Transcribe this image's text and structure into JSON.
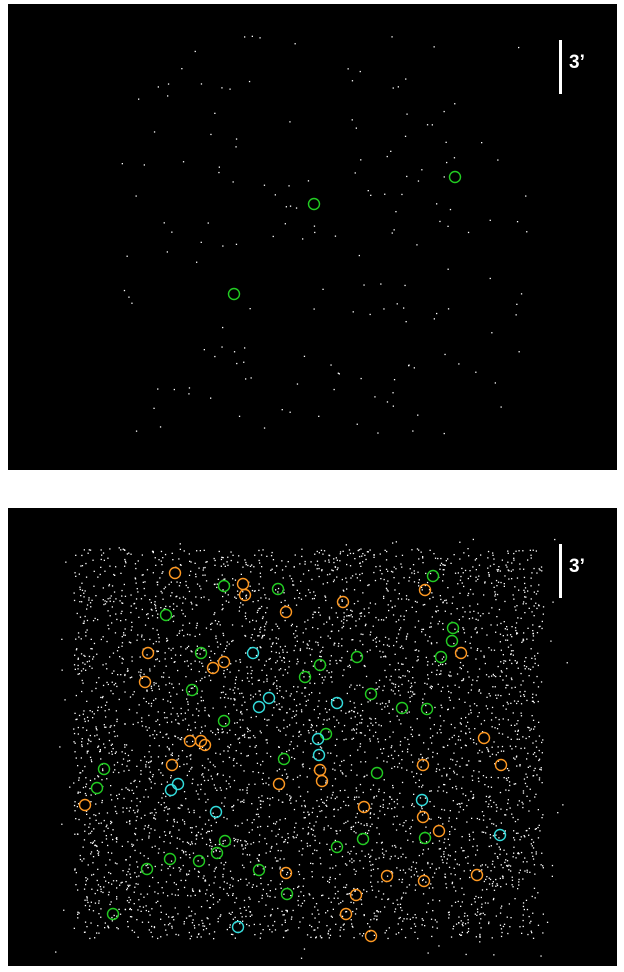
{
  "panels": {
    "top": {
      "scale_label": "3’",
      "circle_colors": {
        "green": "#22cc22",
        "orange": "#ff9922",
        "cyan": "#33dddd"
      }
    },
    "bottom": {
      "scale_label": "3’",
      "circle_colors": {
        "green": "#22cc22",
        "orange": "#ff9922",
        "cyan": "#33dddd"
      }
    }
  },
  "background_color": "#000000",
  "point_color": "#ffffff"
}
